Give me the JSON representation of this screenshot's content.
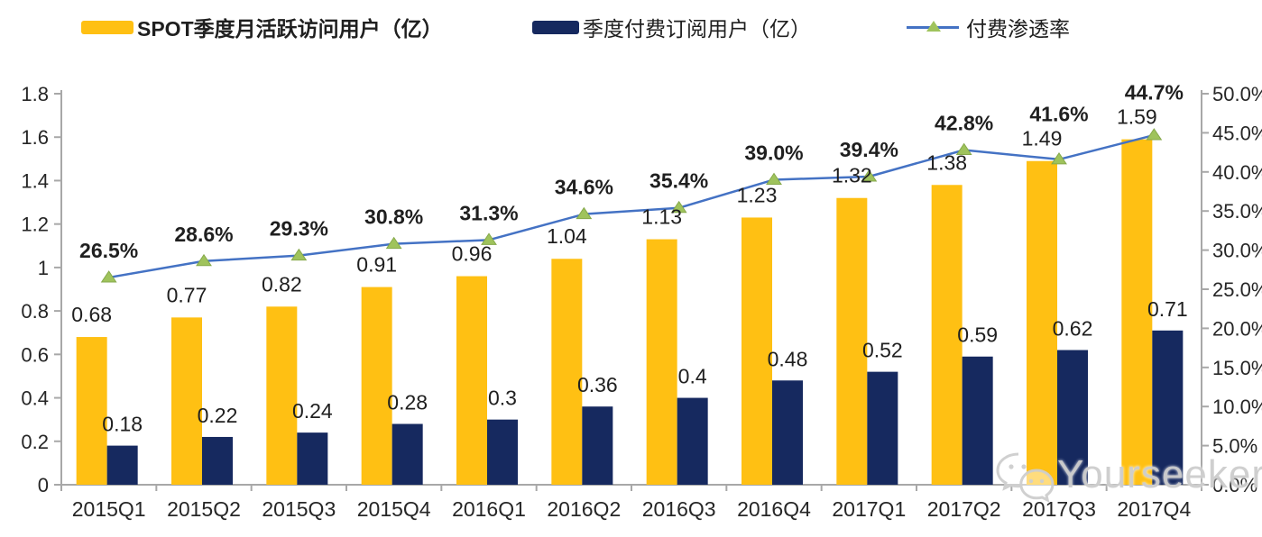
{
  "legend": {
    "mau": {
      "label": "SPOT季度月活跃访问用户（亿）",
      "color": "#FFC013"
    },
    "subs": {
      "label": "季度付费订阅用户（亿）",
      "color": "#16295F"
    },
    "rate": {
      "label": "付费渗透率",
      "line_color": "#4472C4",
      "marker_color": "#9FC35C"
    }
  },
  "watermark": {
    "text": "Yourseeker",
    "icon": "wechat-icon",
    "color": "#CBCBCB"
  },
  "colors": {
    "bar_mau": "#FFC013",
    "bar_subs": "#16295F",
    "line": "#4472C4",
    "marker": "#9FC35C",
    "marker_edge": "#86A94B",
    "axis": "#A8A8A8",
    "label_text": "#1F1F1F",
    "tick_text": "#262626"
  },
  "chart_data": {
    "type": "bar",
    "subtype": "grouped-bars-with-line",
    "categories": [
      "2015Q1",
      "2015Q2",
      "2015Q3",
      "2015Q4",
      "2016Q1",
      "2016Q2",
      "2016Q3",
      "2016Q4",
      "2017Q1",
      "2017Q2",
      "2017Q3",
      "2017Q4"
    ],
    "series": [
      {
        "name": "SPOT季度月活跃访问用户（亿）",
        "type": "bar",
        "axis": "left",
        "values": [
          0.68,
          0.77,
          0.82,
          0.91,
          0.96,
          1.04,
          1.13,
          1.23,
          1.32,
          1.38,
          1.49,
          1.59
        ],
        "labels": [
          "0.68",
          "0.77",
          "0.82",
          "0.91",
          "0.96",
          "1.04",
          "1.13",
          "1.23",
          "1.32",
          "1.38",
          "1.49",
          "1.59"
        ]
      },
      {
        "name": "季度付费订阅用户（亿）",
        "type": "bar",
        "axis": "left",
        "values": [
          0.18,
          0.22,
          0.24,
          0.28,
          0.3,
          0.36,
          0.4,
          0.48,
          0.52,
          0.59,
          0.62,
          0.71
        ],
        "labels": [
          "0.18",
          "0.22",
          "0.24",
          "0.28",
          "0.3",
          "0.36",
          "0.4",
          "0.48",
          "0.52",
          "0.59",
          "0.62",
          "0.71"
        ]
      },
      {
        "name": "付费渗透率",
        "type": "line",
        "axis": "right",
        "values": [
          26.5,
          28.6,
          29.3,
          30.8,
          31.3,
          34.6,
          35.4,
          39.0,
          39.4,
          42.8,
          41.6,
          44.7
        ],
        "labels": [
          "26.5%",
          "28.6%",
          "29.3%",
          "30.8%",
          "31.3%",
          "34.6%",
          "35.4%",
          "39.0%",
          "39.4%",
          "42.8%",
          "41.6%",
          "44.7%"
        ]
      }
    ],
    "left_axis": {
      "min": 0,
      "max": 1.8,
      "ticks": [
        "0",
        "0.2",
        "0.4",
        "0.6",
        "0.8",
        "1",
        "1.2",
        "1.4",
        "1.6",
        "1.8"
      ]
    },
    "right_axis": {
      "min": 0,
      "max": 50,
      "ticks": [
        "0.0%",
        "5.0%",
        "10.0%",
        "15.0%",
        "20.0%",
        "25.0%",
        "30.0%",
        "35.0%",
        "40.0%",
        "45.0%",
        "50.0%"
      ]
    },
    "grid": "off",
    "legend_position": "top"
  }
}
